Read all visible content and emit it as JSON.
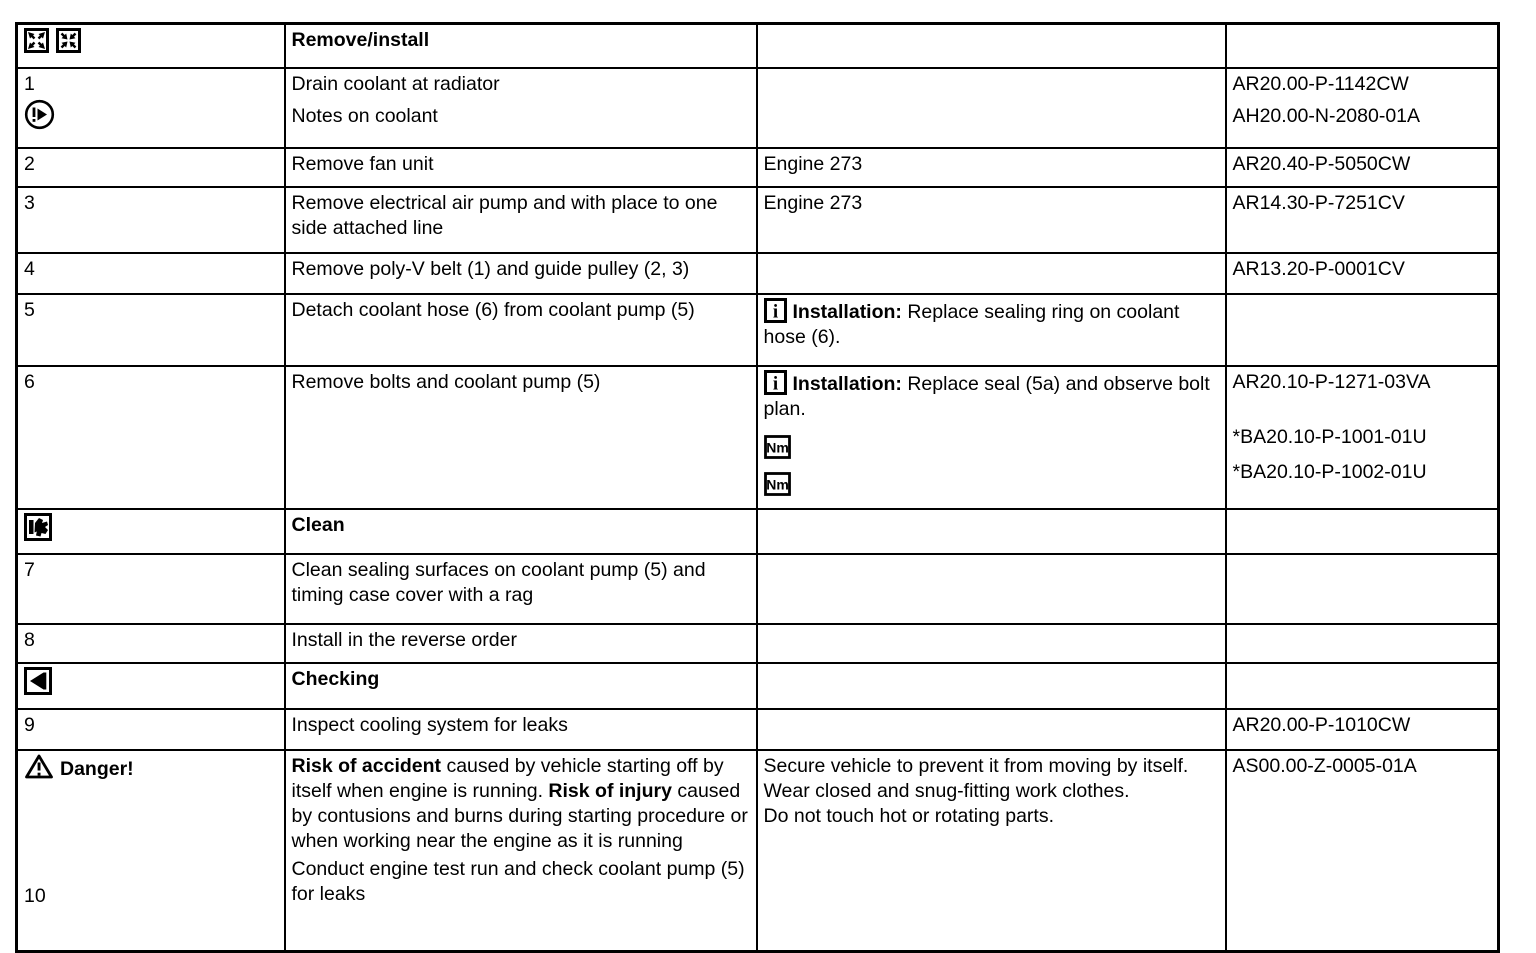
{
  "page": {
    "background": "#ffffff",
    "text_color": "#000000",
    "border_color": "#000000",
    "type": "workshop-manual-procedure-table"
  },
  "table": {
    "columns": [
      "symbol",
      "procedure",
      "note",
      "document"
    ],
    "rows": [
      {
        "id": "header",
        "section": true,
        "col1": [
          [
            {
              "icon": "expand-icon"
            },
            {
              "icon": "collapse-icon"
            }
          ]
        ],
        "col2": [
          [
            {
              "text": "Remove/install",
              "bold": true
            }
          ]
        ],
        "col3": [],
        "col4": []
      },
      {
        "id": "step-1",
        "col1": [
          [
            {
              "text": "1"
            }
          ],
          [
            {
              "icon": "note-arrow-icon"
            }
          ]
        ],
        "col2": [
          [
            {
              "text": "Drain coolant at radiator"
            }
          ],
          [
            {
              "text": "Notes on coolant"
            }
          ]
        ],
        "col3": [],
        "col4": [
          "AR20.00-P-1142CW",
          "AH20.00-N-2080-01A"
        ]
      },
      {
        "id": "step-2",
        "col1": [
          [
            {
              "text": "2"
            }
          ]
        ],
        "col2": [
          [
            {
              "text": "Remove fan unit"
            }
          ]
        ],
        "col3": [
          [
            {
              "text": "Engine 273"
            }
          ]
        ],
        "col4": [
          "AR20.40-P-5050CW"
        ]
      },
      {
        "id": "step-3",
        "col1": [
          [
            {
              "text": "3"
            }
          ]
        ],
        "col2": [
          [
            {
              "text": "Remove electrical air pump and with place to one side attached line"
            }
          ]
        ],
        "col3": [
          [
            {
              "text": "Engine 273"
            }
          ]
        ],
        "col4": [
          "AR14.30-P-7251CV"
        ]
      },
      {
        "id": "step-4",
        "col1": [
          [
            {
              "text": "4"
            }
          ]
        ],
        "col2": [
          [
            {
              "text": "Remove poly-V belt (1) and guide pulley (2, 3)"
            }
          ]
        ],
        "col3": [],
        "col4": [
          "AR13.20-P-0001CV"
        ]
      },
      {
        "id": "step-5",
        "col1": [
          [
            {
              "text": "5"
            }
          ]
        ],
        "col2": [
          [
            {
              "text": "Detach coolant hose (6) from coolant pump (5)"
            }
          ]
        ],
        "col3": [
          [
            {
              "icon": "info-icon"
            },
            {
              "text": "Installation:",
              "bold": true
            },
            {
              "text": " Replace sealing ring on coolant hose (6)."
            }
          ]
        ],
        "col4": []
      },
      {
        "id": "step-6",
        "col1": [
          [
            {
              "text": "6"
            }
          ]
        ],
        "col2": [
          [
            {
              "text": "Remove bolts and coolant pump (5)"
            }
          ]
        ],
        "col3": [
          [
            {
              "icon": "info-icon"
            },
            {
              "text": "Installation:",
              "bold": true
            },
            {
              "text": " Replace seal (5a) and observe bolt plan."
            }
          ],
          [
            {
              "icon": "nm-icon"
            }
          ],
          [
            {
              "icon": "nm-icon"
            }
          ]
        ],
        "col4": [
          "AR20.10-P-1271-03VA",
          "*BA20.10-P-1001-01U",
          "*BA20.10-P-1002-01U"
        ]
      },
      {
        "id": "clean",
        "section": true,
        "col1": [
          [
            {
              "icon": "clean-icon"
            }
          ]
        ],
        "col2": [
          [
            {
              "text": "Clean",
              "bold": true
            }
          ]
        ],
        "col3": [],
        "col4": []
      },
      {
        "id": "step-7",
        "col1": [
          [
            {
              "text": "7"
            }
          ]
        ],
        "col2": [
          [
            {
              "text": "Clean sealing surfaces on coolant pump (5) and timing case cover with a rag"
            }
          ]
        ],
        "col3": [],
        "col4": []
      },
      {
        "id": "step-8",
        "col1": [
          [
            {
              "text": "8"
            }
          ]
        ],
        "col2": [
          [
            {
              "text": "Install in the reverse order"
            }
          ]
        ],
        "col3": [],
        "col4": []
      },
      {
        "id": "checking",
        "section": true,
        "col1": [
          [
            {
              "icon": "checking-icon"
            }
          ]
        ],
        "col2": [
          [
            {
              "text": "Checking",
              "bold": true
            }
          ]
        ],
        "col3": [],
        "col4": []
      },
      {
        "id": "step-9",
        "col1": [
          [
            {
              "text": "9"
            }
          ]
        ],
        "col2": [
          [
            {
              "text": "Inspect cooling system for leaks"
            }
          ]
        ],
        "col3": [],
        "col4": [
          "AR20.00-P-1010CW"
        ]
      },
      {
        "id": "danger",
        "col1": [
          [
            {
              "icon": "warning-icon"
            },
            {
              "text": "Danger!",
              "bold": true
            }
          ],
          [
            {
              "text": "10"
            }
          ]
        ],
        "col2": [
          [
            {
              "text": "Risk of accident",
              "bold": true
            },
            {
              "text": "  caused by vehicle starting off by itself when engine is running.  "
            },
            {
              "text": "Risk of injury",
              "bold": true
            },
            {
              "text": " caused by contusions and burns during starting procedure or when working near the engine as it is running"
            }
          ],
          [
            {
              "text": "Conduct engine test run and check coolant pump (5) for leaks"
            }
          ]
        ],
        "col3": [
          [
            {
              "text": "Secure vehicle to prevent it from moving by itself."
            }
          ],
          [
            {
              "text": "Wear closed and snug-fitting work clothes."
            }
          ],
          [
            {
              "text": "Do not touch hot or rotating parts."
            }
          ]
        ],
        "col4": [
          "AS00.00-Z-0005-01A"
        ]
      }
    ]
  }
}
